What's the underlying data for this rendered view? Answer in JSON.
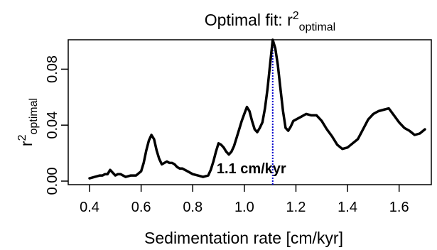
{
  "chart_data": {
    "type": "line",
    "title_main": "Optimal fit: r",
    "title_sup": "2",
    "title_sub": "optimal",
    "xlabel": "Sedimentation rate [cm/kyr]",
    "ylabel_main": "r",
    "ylabel_sup": "2",
    "ylabel_sub": "optimal",
    "xlim": [
      0.4,
      1.7
    ],
    "ylim": [
      0.0,
      0.1
    ],
    "x_ticks": [
      "0.4",
      "0.6",
      "0.8",
      "1.0",
      "1.2",
      "1.4",
      "1.6"
    ],
    "y_ticks": [
      "0.00",
      "0.04",
      "0.08"
    ],
    "grid": false,
    "line_color": "#000000",
    "marker_color": "#0000cc",
    "marker_x": 1.11,
    "annotation": "1.1 cm/kyr",
    "series": [
      {
        "x": [
          0.4,
          0.42,
          0.44,
          0.45,
          0.46,
          0.47,
          0.48,
          0.49,
          0.5,
          0.51,
          0.52,
          0.54,
          0.56,
          0.58,
          0.6,
          0.61,
          0.62,
          0.63,
          0.64,
          0.65,
          0.66,
          0.67,
          0.68,
          0.69,
          0.7,
          0.71,
          0.72,
          0.73,
          0.74,
          0.75,
          0.76,
          0.78,
          0.8,
          0.82,
          0.84,
          0.86,
          0.87,
          0.88,
          0.89,
          0.9,
          0.91,
          0.92,
          0.93,
          0.94,
          0.95,
          0.96,
          0.97,
          0.98,
          0.99,
          1.0,
          1.01,
          1.02,
          1.03,
          1.04,
          1.05,
          1.06,
          1.07,
          1.08,
          1.09,
          1.1,
          1.11,
          1.12,
          1.13,
          1.14,
          1.15,
          1.16,
          1.17,
          1.18,
          1.19,
          1.2,
          1.22,
          1.24,
          1.26,
          1.28,
          1.3,
          1.32,
          1.34,
          1.36,
          1.38,
          1.4,
          1.42,
          1.44,
          1.46,
          1.48,
          1.5,
          1.52,
          1.54,
          1.56,
          1.58,
          1.6,
          1.62,
          1.64,
          1.66,
          1.68,
          1.7
        ],
        "y": [
          0.002,
          0.003,
          0.004,
          0.004,
          0.005,
          0.005,
          0.008,
          0.006,
          0.004,
          0.005,
          0.005,
          0.003,
          0.004,
          0.004,
          0.007,
          0.013,
          0.022,
          0.029,
          0.033,
          0.03,
          0.022,
          0.016,
          0.012,
          0.013,
          0.014,
          0.013,
          0.013,
          0.012,
          0.01,
          0.009,
          0.009,
          0.007,
          0.005,
          0.004,
          0.003,
          0.004,
          0.008,
          0.014,
          0.021,
          0.027,
          0.026,
          0.024,
          0.021,
          0.019,
          0.021,
          0.025,
          0.031,
          0.037,
          0.043,
          0.048,
          0.053,
          0.05,
          0.043,
          0.037,
          0.035,
          0.038,
          0.042,
          0.052,
          0.066,
          0.084,
          0.101,
          0.095,
          0.083,
          0.066,
          0.05,
          0.038,
          0.036,
          0.039,
          0.043,
          0.044,
          0.046,
          0.048,
          0.047,
          0.047,
          0.043,
          0.037,
          0.032,
          0.026,
          0.023,
          0.024,
          0.027,
          0.03,
          0.037,
          0.044,
          0.048,
          0.05,
          0.051,
          0.052,
          0.047,
          0.042,
          0.038,
          0.036,
          0.033,
          0.034,
          0.037
        ]
      }
    ]
  }
}
